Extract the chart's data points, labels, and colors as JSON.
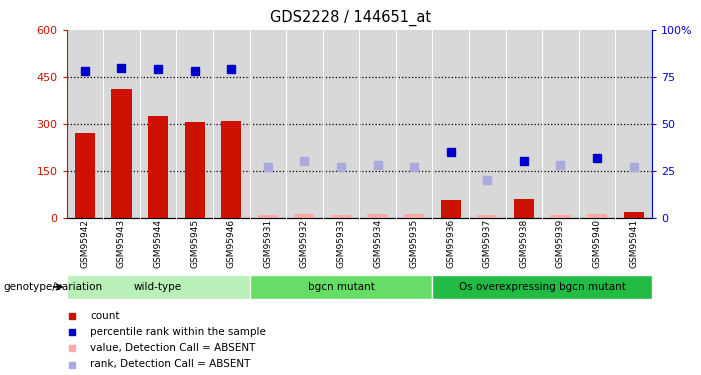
{
  "title": "GDS2228 / 144651_at",
  "samples": [
    "GSM95942",
    "GSM95943",
    "GSM95944",
    "GSM95945",
    "GSM95946",
    "GSM95931",
    "GSM95932",
    "GSM95933",
    "GSM95934",
    "GSM95935",
    "GSM95936",
    "GSM95937",
    "GSM95938",
    "GSM95939",
    "GSM95940",
    "GSM95941"
  ],
  "count_values": [
    270,
    410,
    325,
    305,
    310,
    8,
    12,
    8,
    12,
    10,
    55,
    8,
    60,
    8,
    12,
    18
  ],
  "count_absent": [
    false,
    false,
    false,
    false,
    false,
    true,
    true,
    true,
    true,
    true,
    false,
    true,
    false,
    true,
    true,
    false
  ],
  "rank_values": [
    78,
    80,
    79,
    78,
    79,
    27,
    30,
    27,
    28,
    27,
    35,
    20,
    30,
    28,
    32,
    27
  ],
  "rank_absent": [
    false,
    false,
    false,
    false,
    false,
    true,
    true,
    true,
    true,
    true,
    false,
    true,
    false,
    true,
    false,
    true
  ],
  "groups": [
    {
      "label": "wild-type",
      "start": 0,
      "end": 4,
      "color": "#b8f0b8"
    },
    {
      "label": "bgcn mutant",
      "start": 5,
      "end": 9,
      "color": "#66dd66"
    },
    {
      "label": "Os overexpressing bgcn mutant",
      "start": 10,
      "end": 15,
      "color": "#22bb44"
    }
  ],
  "ylim_left": [
    0,
    600
  ],
  "ylim_right": [
    0,
    100
  ],
  "yticks_left": [
    0,
    150,
    300,
    450,
    600
  ],
  "yticks_right": [
    0,
    25,
    50,
    75,
    100
  ],
  "ytick_labels_left": [
    "0",
    "150",
    "300",
    "450",
    "600"
  ],
  "ytick_labels_right": [
    "0",
    "25",
    "50",
    "75",
    "100%"
  ],
  "bar_color_present": "#cc1100",
  "bar_color_absent": "#ffaaaa",
  "dot_color_present": "#0000cc",
  "dot_color_absent": "#aaaadd",
  "bg_color": "#d8d8d8",
  "genotype_label": "genotype/variation",
  "legend_items": [
    {
      "label": "count",
      "color": "#cc1100"
    },
    {
      "label": "percentile rank within the sample",
      "color": "#0000cc"
    },
    {
      "label": "value, Detection Call = ABSENT",
      "color": "#ffaaaa"
    },
    {
      "label": "rank, Detection Call = ABSENT",
      "color": "#aaaadd"
    }
  ]
}
